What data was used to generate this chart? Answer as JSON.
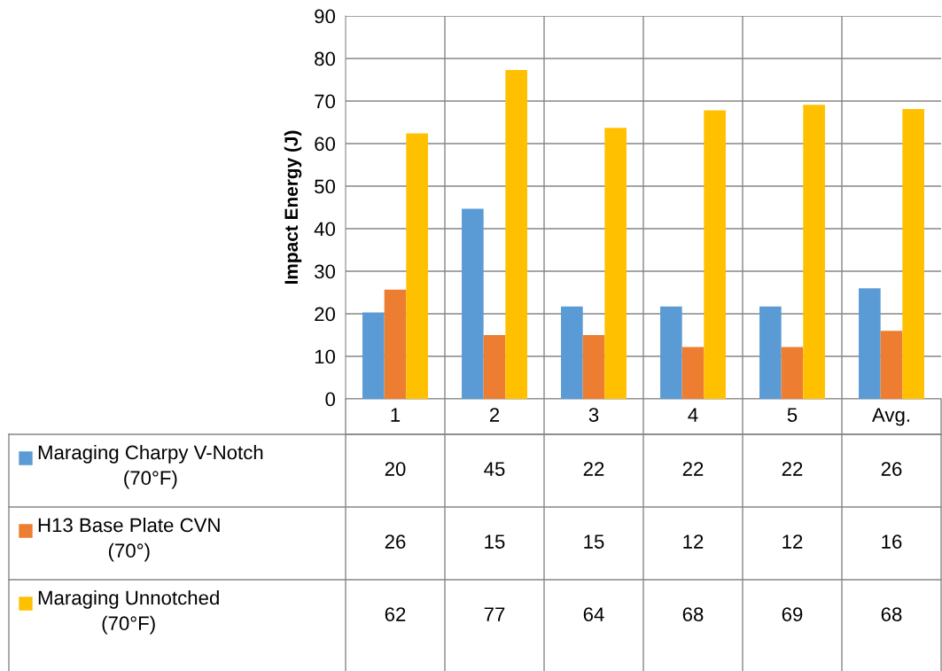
{
  "chart_data": {
    "type": "bar",
    "ylabel": "Impact Energy (J)",
    "categories": [
      "1",
      "2",
      "3",
      "4",
      "5",
      "Avg."
    ],
    "series": [
      {
        "name": "Maraging Charpy V-Notch\n(70°F)",
        "color": "#5b9bd5",
        "values": [
          20.3,
          44.7,
          21.7,
          21.7,
          21.7,
          26.0
        ],
        "value_labels": [
          "20",
          "45",
          "22",
          "22",
          "22",
          "26"
        ]
      },
      {
        "name": "H13 Base Plate CVN\n(70°)",
        "color": "#ed7d31",
        "values": [
          25.7,
          15.0,
          15.0,
          12.2,
          12.2,
          16.0
        ],
        "value_labels": [
          "26",
          "15",
          "15",
          "12",
          "12",
          "16"
        ]
      },
      {
        "name": "Maraging Unnotched\n(70°F)",
        "color": "#ffc000",
        "values": [
          62.4,
          77.3,
          63.7,
          67.8,
          69.1,
          68.1
        ],
        "value_labels": [
          "62",
          "77",
          "64",
          "68",
          "69",
          "68"
        ]
      }
    ],
    "ylim": [
      0,
      90
    ],
    "yticks": [
      0,
      10,
      20,
      30,
      40,
      50,
      60,
      70,
      80,
      90
    ],
    "grid": "y",
    "legend": "bottom left"
  }
}
